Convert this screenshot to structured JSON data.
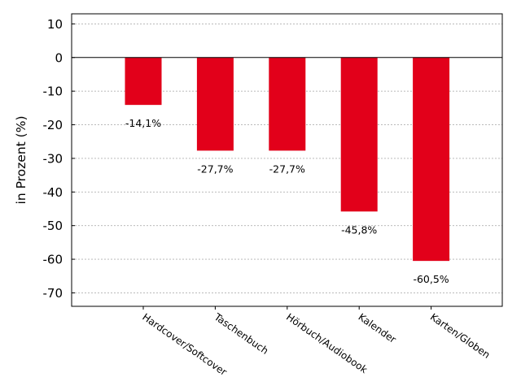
{
  "chart_data": {
    "type": "bar",
    "categories": [
      "Hardcover/Softcover",
      "Taschenbuch",
      "Hörbuch/Audiobook",
      "Kalender",
      "Karten/Globen"
    ],
    "values": [
      -14.1,
      -27.7,
      -27.7,
      -45.8,
      -60.5
    ],
    "data_labels": [
      "-14,1%",
      "-27,7%",
      "-27,7%",
      "-45,8%",
      "-60,5%"
    ],
    "title": "",
    "xlabel": "",
    "ylabel": "in Prozent (%)",
    "ylim": [
      -74,
      13
    ],
    "yticks": [
      10,
      0,
      -10,
      -20,
      -30,
      -40,
      -50,
      -60,
      -70
    ],
    "grid": true,
    "bar_color": "#e2001a"
  }
}
